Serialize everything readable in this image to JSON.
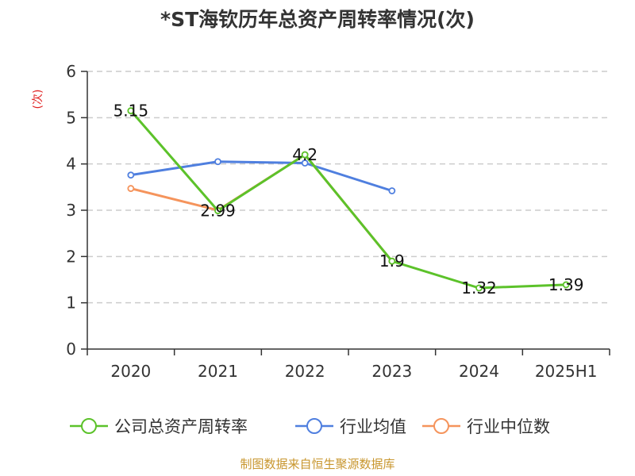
{
  "chart_data": {
    "type": "line",
    "title": "*ST海钦历年总资产周转率情况(次)",
    "ylabel": "(次)",
    "categories": [
      "2020",
      "2021",
      "2022",
      "2023",
      "2024",
      "2025H1"
    ],
    "ylim": [
      0,
      6
    ],
    "yticks": [
      "0",
      "1",
      "2",
      "3",
      "4",
      "5",
      "6"
    ],
    "grid": true,
    "legend_position": "bottom",
    "series": [
      {
        "name": "公司总资产周转率",
        "color": "#5cc22a",
        "values": [
          5.15,
          2.99,
          4.2,
          1.9,
          1.32,
          1.39
        ],
        "labels": [
          "5.15",
          "2.99",
          "4.2",
          "1.9",
          "1.32",
          "1.39"
        ]
      },
      {
        "name": "行业均值",
        "color": "#4f7fdf",
        "values": [
          3.76,
          4.05,
          4.02,
          3.42,
          null,
          null
        ]
      },
      {
        "name": "行业中位数",
        "color": "#f5945c",
        "values": [
          3.47,
          3.0,
          4.2,
          1.9,
          null,
          null
        ]
      }
    ]
  },
  "source": "制图数据来自恒生聚源数据库",
  "colors": {
    "ylabel": "#e02020",
    "source": "#c8962e",
    "grid": "#cccccc",
    "axis": "#333333"
  }
}
